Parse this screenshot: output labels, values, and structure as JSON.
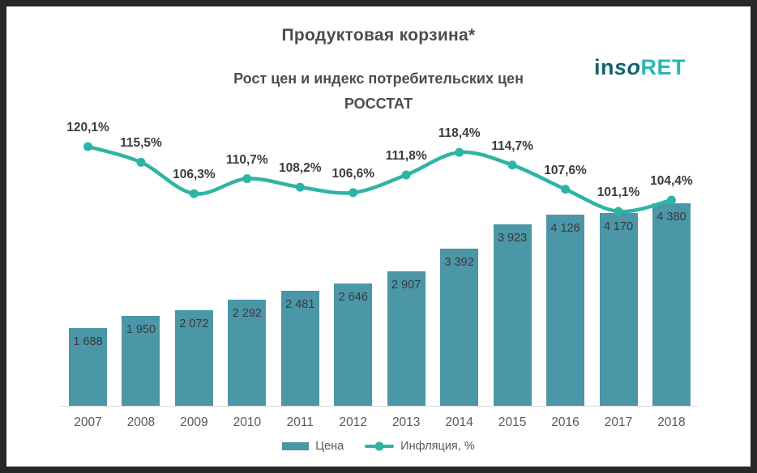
{
  "header": {
    "title": "Продуктовая корзина*",
    "subtitle_line1": "Рост цен и индекс потребительских цен",
    "subtitle_line2": "РОССТАТ"
  },
  "logo": {
    "part1": "in",
    "part2": "so",
    "part3": "RET"
  },
  "legend": {
    "price_label": "Цена",
    "inflation_label": "Инфляция, %"
  },
  "colors": {
    "frame": "#282828",
    "bar": "#4b96a7",
    "line": "#2eb4a4",
    "title_text": "#4d4d4d",
    "axis_text": "#595959",
    "logo_dark": "#15616d",
    "logo_teal": "#29b7b2"
  },
  "chart_data": {
    "type": "bar+line",
    "title": "Продуктовая корзина*",
    "subtitle": "Рост цен и индекс потребительских цен РОССТАТ",
    "categories": [
      "2007",
      "2008",
      "2009",
      "2010",
      "2011",
      "2012",
      "2013",
      "2014",
      "2015",
      "2016",
      "2017",
      "2018"
    ],
    "series": [
      {
        "name": "Цена",
        "type": "bar",
        "values": [
          1688,
          1950,
          2072,
          2292,
          2481,
          2646,
          2907,
          3392,
          3923,
          4126,
          4170,
          4380
        ],
        "labels": [
          "1 688",
          "1 950",
          "2 072",
          "2 292",
          "2 481",
          "2 646",
          "2 907",
          "3 392",
          "3 923",
          "4 126",
          "4 170",
          "4 380"
        ]
      },
      {
        "name": "Инфляция, %",
        "type": "line",
        "values": [
          120.1,
          115.5,
          106.3,
          110.7,
          108.2,
          106.6,
          111.8,
          118.4,
          114.7,
          107.6,
          101.1,
          104.4
        ],
        "labels": [
          "120,1%",
          "115,5%",
          "106,3%",
          "110,7%",
          "108,2%",
          "106,6%",
          "111,8%",
          "118,4%",
          "114,7%",
          "107,6%",
          "101,1%",
          "104,4%"
        ]
      }
    ],
    "legend_position": "bottom",
    "grid": false,
    "bar_axis_range": [
      0,
      4380
    ],
    "value_axis_visible": false
  }
}
